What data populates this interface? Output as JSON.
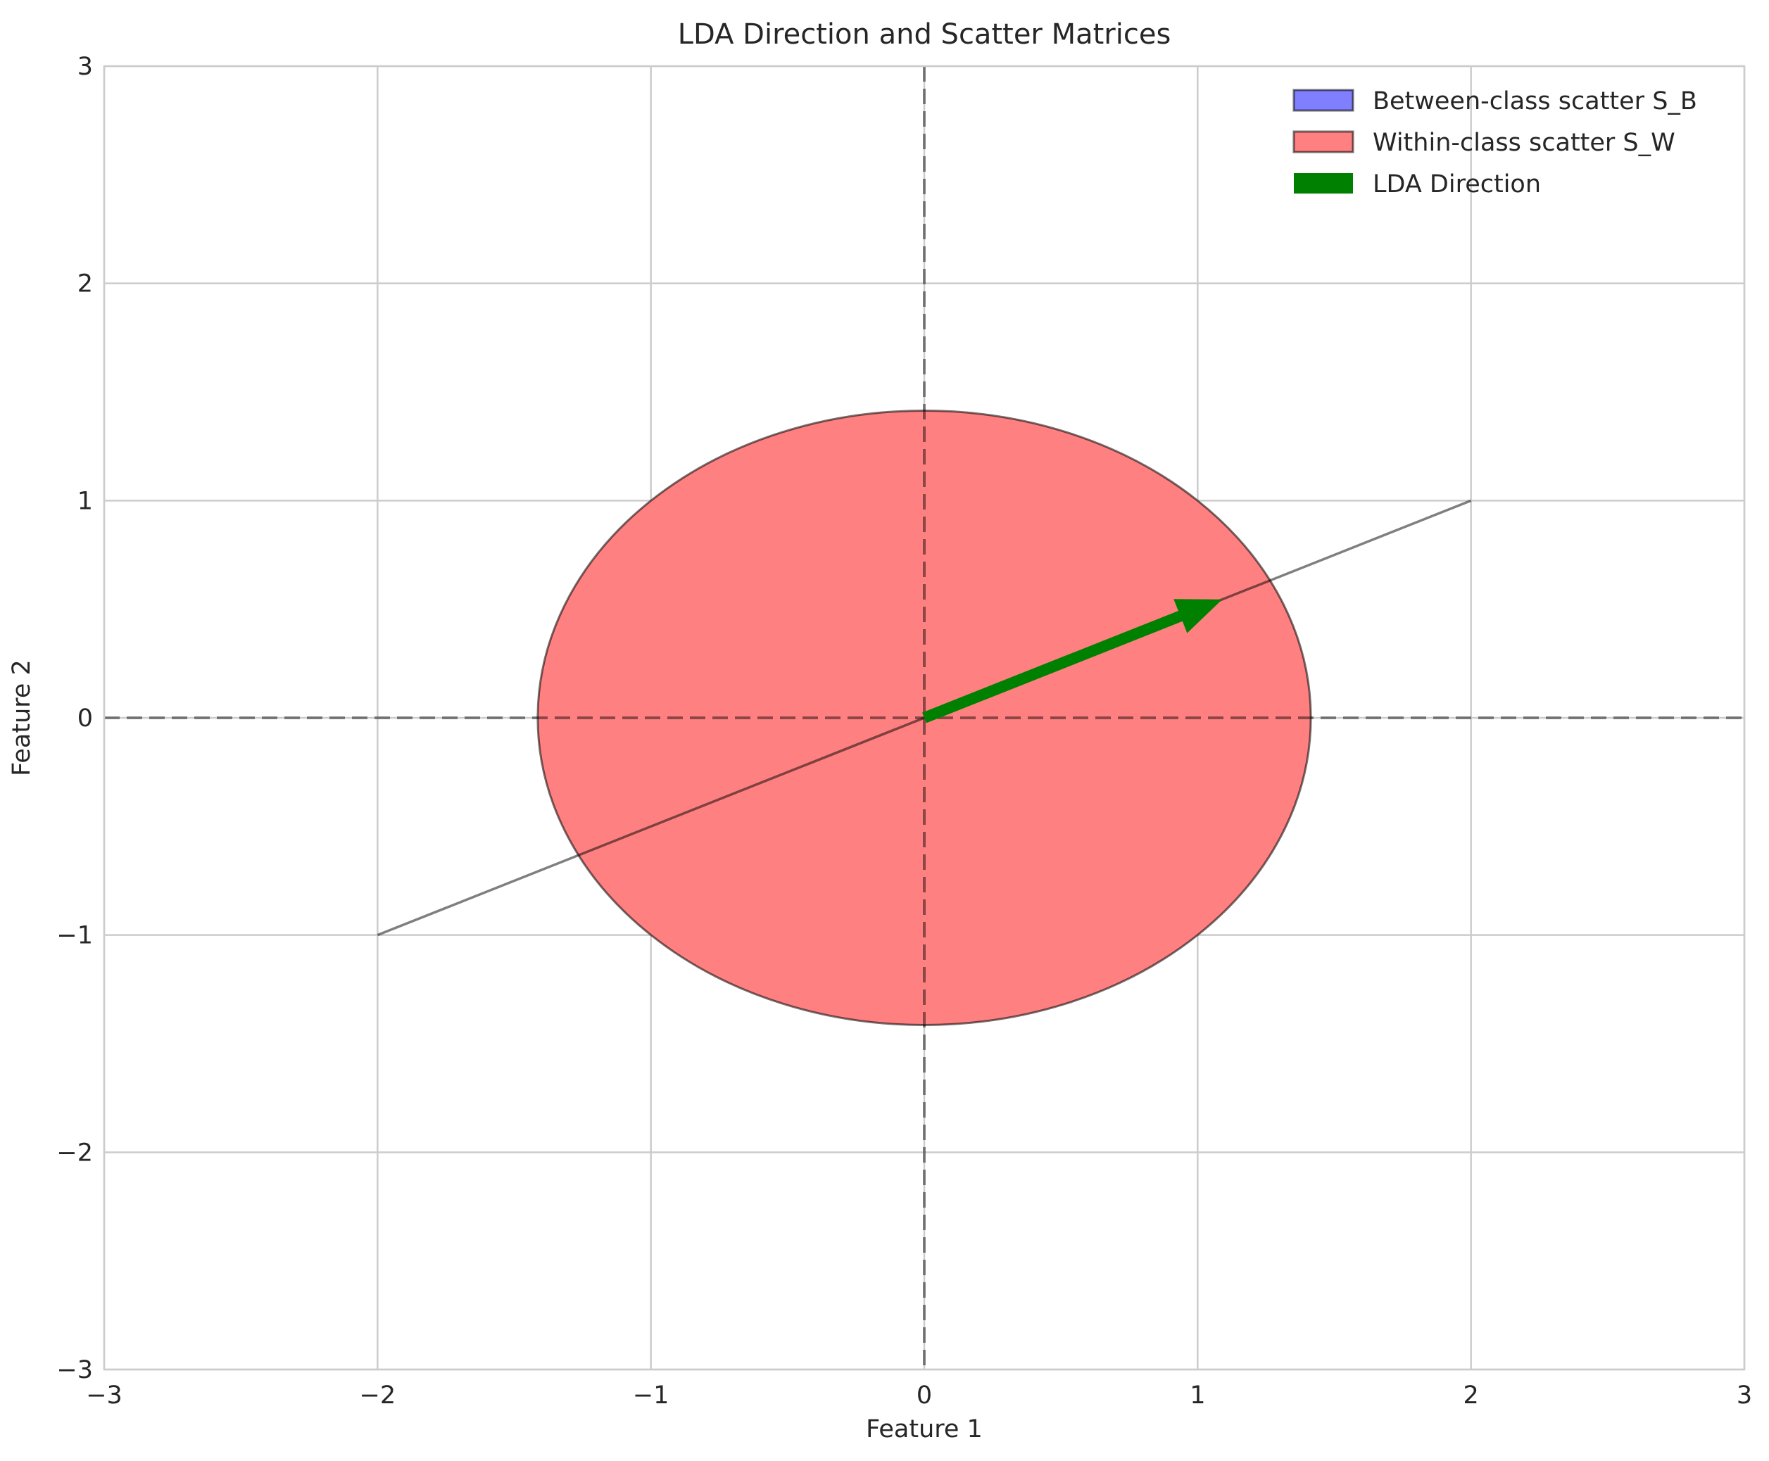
{
  "chart_data": {
    "type": "scatter",
    "title": "LDA Direction and Scatter Matrices",
    "xlabel": "Feature 1",
    "ylabel": "Feature 2",
    "xlim": [
      -3,
      3
    ],
    "ylim": [
      -3,
      3
    ],
    "xticks": [
      -3,
      -2,
      -1,
      0,
      1,
      2,
      3
    ],
    "yticks": [
      -3,
      -2,
      -1,
      0,
      1,
      2,
      3
    ],
    "xtick_labels": [
      "−3",
      "−2",
      "−1",
      "0",
      "1",
      "2",
      "3"
    ],
    "ytick_labels": [
      "−3",
      "−2",
      "−1",
      "0",
      "1",
      "2",
      "3"
    ],
    "grid": true,
    "legend_position": "top-right",
    "axis_lines": [
      {
        "orientation": "horizontal",
        "value": 0,
        "style": "dashed"
      },
      {
        "orientation": "vertical",
        "value": 0,
        "style": "dashed"
      }
    ],
    "series": [
      {
        "name": "Between-class scatter S_B",
        "kind": "ellipse",
        "center": [
          0,
          0
        ],
        "rx": 0,
        "ry": 0,
        "fill": "#8080ff",
        "edge": "#555555"
      },
      {
        "name": "Within-class scatter S_W",
        "kind": "ellipse",
        "center": [
          0,
          0
        ],
        "rx": 1.414,
        "ry": 1.414,
        "fill": "#ff8080",
        "edge": "#555555"
      },
      {
        "name": "LDA Direction",
        "kind": "arrow",
        "from": [
          0,
          0
        ],
        "to": [
          1.09,
          0.545
        ],
        "color": "#008000"
      }
    ],
    "line": {
      "points": [
        [
          -2,
          -1
        ],
        [
          2,
          1
        ]
      ],
      "color": "#7f7f7f"
    }
  }
}
